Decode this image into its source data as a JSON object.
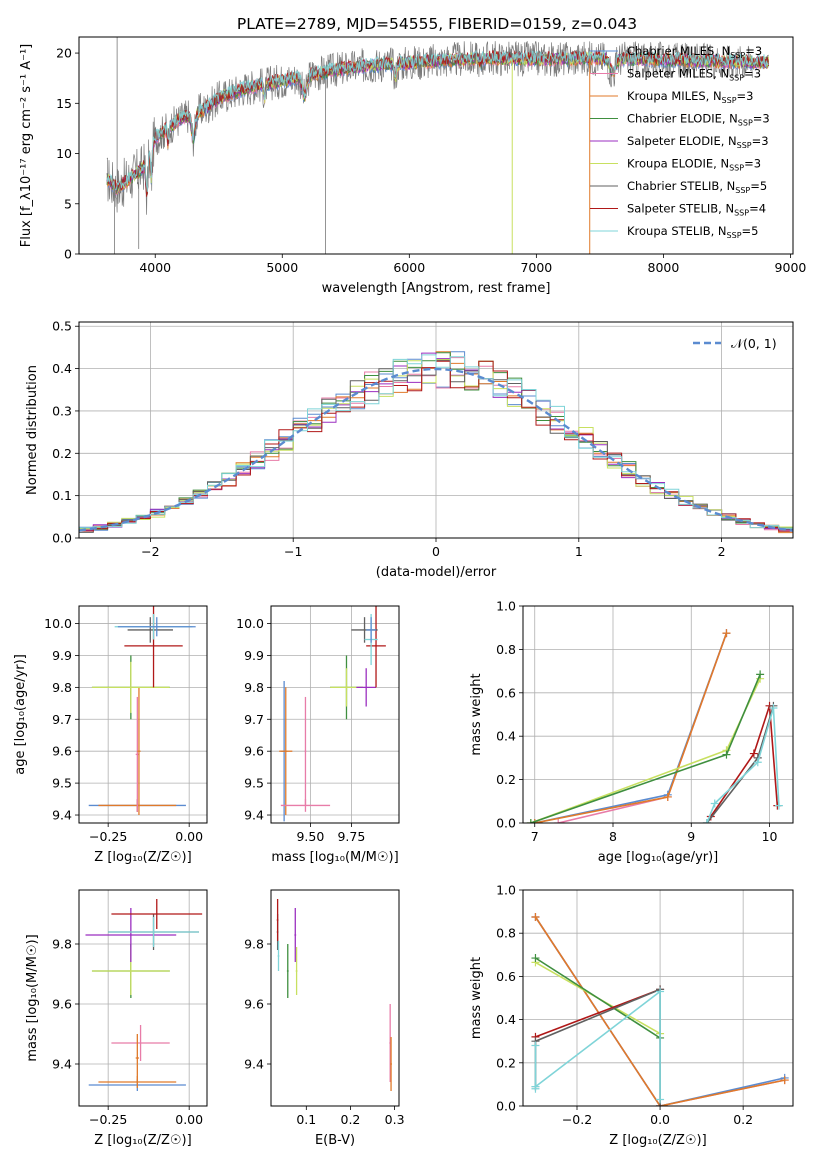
{
  "figure_title": "PLATE=2789, MJD=54555, FIBERID=0159, z=0.043",
  "colors": {
    "chabrier_miles": "#5b8bd0",
    "salpeter_miles": "#e87ca8",
    "kroupa_miles": "#e07a2a",
    "chabrier_elodie": "#3f8f3f",
    "salpeter_elodie": "#9b2fc0",
    "kroupa_elodie": "#c8e060",
    "chabrier_stelib": "#606060",
    "salpeter_stelib": "#b01818",
    "kroupa_stelib": "#7fd4d8",
    "gauss": "#5b8bd0",
    "grid": "#b0b0b0"
  },
  "chart_data": [
    {
      "id": "spectrum",
      "type": "line",
      "title": "PLATE=2789, MJD=54555, FIBERID=0159, z=0.043",
      "xlabel": "wavelength [Angstrom, rest frame]",
      "ylabel": "Flux [f_λ10⁻¹⁷ erg cm⁻² s⁻¹ A⁻¹]",
      "xlim": [
        3400,
        9020
      ],
      "ylim": [
        0,
        21.6
      ],
      "xticks": [
        4000,
        5000,
        6000,
        7000,
        8000,
        9000
      ],
      "yticks": [
        0,
        5,
        10,
        15,
        20
      ],
      "grid": false,
      "legend": "top-right",
      "legend_entries": [
        {
          "key": "chabrier_miles",
          "label": "Chabrier MILES, N",
          "sub": "SSP",
          "tail": "=3"
        },
        {
          "key": "salpeter_miles",
          "label": "Salpeter MILES, N",
          "sub": "SSP",
          "tail": "=3"
        },
        {
          "key": "kroupa_miles",
          "label": "Kroupa MILES, N",
          "sub": "SSP",
          "tail": "=3"
        },
        {
          "key": "chabrier_elodie",
          "label": "Chabrier ELODIE, N",
          "sub": "SSP",
          "tail": "=3"
        },
        {
          "key": "salpeter_elodie",
          "label": "Salpeter ELODIE, N",
          "sub": "SSP",
          "tail": "=3"
        },
        {
          "key": "kroupa_elodie",
          "label": "Kroupa ELODIE, N",
          "sub": "SSP",
          "tail": "=3"
        },
        {
          "key": "chabrier_stelib",
          "label": "Chabrier STELIB, N",
          "sub": "SSP",
          "tail": "=5"
        },
        {
          "key": "salpeter_stelib",
          "label": "Salpeter STELIB, N",
          "sub": "SSP",
          "tail": "=4"
        },
        {
          "key": "kroupa_stelib",
          "label": "Kroupa STELIB, N",
          "sub": "SSP",
          "tail": "=5"
        }
      ],
      "continuum": {
        "x": [
          3620,
          3700,
          3800,
          3900,
          4000,
          4100,
          4200,
          4300,
          4400,
          4500,
          4700,
          4900,
          5100,
          5300,
          5500,
          5700,
          6000,
          6300,
          6600,
          6900,
          7200,
          7500,
          7800,
          8100,
          8400,
          8700
        ],
        "y": [
          7.5,
          6.5,
          7.5,
          8.5,
          11.5,
          12.5,
          13.5,
          14.0,
          14.5,
          15.5,
          16.5,
          17.0,
          17.5,
          18.0,
          18.5,
          18.8,
          19.0,
          19.3,
          19.5,
          19.4,
          19.4,
          19.5,
          19.4,
          19.3,
          19.2,
          19.1
        ]
      },
      "data_range": [
        3620,
        8700
      ],
      "model_range": [
        3620,
        8830
      ]
    },
    {
      "id": "residuals",
      "type": "histogram",
      "xlabel": "(data-model)/error",
      "ylabel": "Normed distribution",
      "xlim": [
        -2.5,
        2.5
      ],
      "ylim": [
        0,
        0.51
      ],
      "xticks": [
        -2,
        -1,
        0,
        1,
        2
      ],
      "yticks": [
        0,
        0.1,
        0.2,
        0.3,
        0.4,
        0.5
      ],
      "grid": true,
      "legend": "top-right",
      "legend_label": "𝒩(0, 1)",
      "gauss": {
        "mean": 0,
        "sigma": 1
      }
    },
    {
      "id": "age-vs-Z",
      "type": "errorbar",
      "xlabel": "Z [log₁₀(Z/Z☉)]",
      "ylabel": "age  [log₁₀(age/yr)]",
      "xlim": [
        -0.34,
        0.055
      ],
      "ylim": [
        9.375,
        10.055
      ],
      "xticks": [
        -0.25,
        0,
        0.25
      ],
      "xticklabels": [
        "−0.25",
        "0.00",
        ""
      ],
      "yticks": [
        9.4,
        9.5,
        9.6,
        9.7,
        9.8,
        9.9,
        10.0
      ],
      "grid": true,
      "points": [
        {
          "key": "chabrier_miles",
          "x": -0.16,
          "xerr": 0.15,
          "y": 9.43,
          "yerr": 0.02
        },
        {
          "key": "kroupa_miles",
          "x": -0.16,
          "xerr": 0.12,
          "y": 9.43,
          "yerr": 0.02
        },
        {
          "key": "salpeter_miles",
          "x": -0.16,
          "xerr": 0.005,
          "y": 9.59,
          "yerr": 0.18
        },
        {
          "key": "kroupa_miles",
          "x": -0.155,
          "xerr": 0.005,
          "y": 9.6,
          "yerr": 0.2
        },
        {
          "key": "chabrier_elodie",
          "x": -0.18,
          "xerr": 0.12,
          "y": 9.8,
          "yerr": 0.1
        },
        {
          "key": "kroupa_elodie",
          "x": -0.18,
          "xerr": 0.12,
          "y": 9.8,
          "yerr": 0.08
        },
        {
          "key": "salpeter_stelib",
          "x": -0.11,
          "xerr": 0.09,
          "y": 9.93,
          "yerr": 0.13
        },
        {
          "key": "chabrier_stelib",
          "x": -0.12,
          "xerr": 0.07,
          "y": 9.98,
          "yerr": 0.04
        },
        {
          "key": "kroupa_stelib",
          "x": -0.11,
          "xerr": 0.12,
          "y": 9.99,
          "yerr": 0.04
        },
        {
          "key": "chabrier_miles",
          "x": -0.1,
          "xerr": 0.12,
          "y": 9.99,
          "yerr": 0.03
        }
      ]
    },
    {
      "id": "age-vs-mass",
      "type": "errorbar",
      "xlabel": "mass [log₁₀(M/M☉)]",
      "xlim": [
        9.26,
        10.04
      ],
      "ylim": [
        9.375,
        10.055
      ],
      "xticks": [
        9.5,
        9.75
      ],
      "xticklabels": [
        "9.50",
        "9.75"
      ],
      "yticks": [
        9.4,
        9.5,
        9.6,
        9.7,
        9.8,
        9.9,
        10.0
      ],
      "grid": true,
      "points": [
        {
          "key": "chabrier_miles",
          "x": 9.34,
          "xerr": 0.02,
          "y": 9.6,
          "yerr": 0.22
        },
        {
          "key": "kroupa_miles",
          "x": 9.35,
          "xerr": 0.04,
          "y": 9.6,
          "yerr": 0.2
        },
        {
          "key": "salpeter_miles",
          "x": 9.47,
          "xerr": 0.15,
          "y": 9.43,
          "yerr": 0.02
        },
        {
          "key": "salpeter_miles",
          "x": 9.47,
          "xerr": 0.005,
          "y": 9.6,
          "yerr": 0.17
        },
        {
          "key": "chabrier_elodie",
          "x": 9.72,
          "xerr": 0.1,
          "y": 9.8,
          "yerr": 0.1
        },
        {
          "key": "kroupa_elodie",
          "x": 9.72,
          "xerr": 0.1,
          "y": 9.8,
          "yerr": 0.06
        },
        {
          "key": "salpeter_elodie",
          "x": 9.84,
          "xerr": 0.06,
          "y": 9.8,
          "yerr": 0.06
        },
        {
          "key": "salpeter_stelib",
          "x": 9.9,
          "xerr": 0.06,
          "y": 9.93,
          "yerr": 0.13
        },
        {
          "key": "chabrier_stelib",
          "x": 9.83,
          "xerr": 0.08,
          "y": 9.98,
          "yerr": 0.04
        },
        {
          "key": "kroupa_stelib",
          "x": 9.87,
          "xerr": 0.04,
          "y": 9.95,
          "yerr": 0.08
        },
        {
          "key": "chabrier_miles",
          "x": 9.87,
          "xerr": 0.03,
          "y": 9.98,
          "yerr": 0.04
        }
      ]
    },
    {
      "id": "weight-vs-age",
      "type": "line",
      "xlabel": "age  [log₁₀(age/yr)]",
      "ylabel": "mass weight",
      "xlim": [
        6.85,
        10.3
      ],
      "ylim": [
        0,
        1.0
      ],
      "xticks": [
        7,
        8,
        9,
        10
      ],
      "yticks": [
        0,
        0.2,
        0.4,
        0.6,
        0.8,
        1.0
      ],
      "grid": true,
      "series": [
        {
          "key": "salpeter_miles",
          "x": [
            7.3,
            8.7,
            9.45
          ],
          "y": [
            0.0,
            0.12,
            0.875
          ]
        },
        {
          "key": "chabrier_miles",
          "x": [
            7.0,
            8.7,
            9.45
          ],
          "y": [
            0.0,
            0.13,
            0.875
          ]
        },
        {
          "key": "kroupa_miles",
          "x": [
            7.0,
            8.7,
            9.45
          ],
          "y": [
            0.0,
            0.12,
            0.875
          ]
        },
        {
          "key": "kroupa_elodie",
          "x": [
            6.95,
            9.45,
            9.88
          ],
          "y": [
            0.0,
            0.335,
            0.665
          ]
        },
        {
          "key": "chabrier_elodie",
          "x": [
            6.95,
            9.45,
            9.88
          ],
          "y": [
            0.0,
            0.315,
            0.685
          ]
        },
        {
          "key": "salpeter_stelib",
          "x": [
            9.25,
            9.8,
            10.0,
            10.1
          ],
          "y": [
            0.03,
            0.32,
            0.54,
            0.08
          ]
        },
        {
          "key": "chabrier_stelib",
          "x": [
            9.2,
            9.85,
            10.05
          ],
          "y": [
            0.0,
            0.3,
            0.54
          ]
        },
        {
          "key": "kroupa_stelib",
          "x": [
            9.2,
            9.3,
            9.85,
            10.05,
            10.12
          ],
          "y": [
            0.0,
            0.09,
            0.28,
            0.53,
            0.08
          ]
        }
      ]
    },
    {
      "id": "mass-vs-Z",
      "type": "errorbar",
      "xlabel": "Z [log₁₀(Z/Z☉)]",
      "ylabel": "mass [log₁₀(M/M☉)]",
      "xlim": [
        -0.34,
        0.055
      ],
      "ylim": [
        9.26,
        9.98
      ],
      "xticks": [
        -0.25,
        0,
        0.25
      ],
      "xticklabels": [
        "−0.25",
        "0.00",
        ""
      ],
      "yticks": [
        9.4,
        9.6,
        9.8
      ],
      "grid": true,
      "points": [
        {
          "key": "chabrier_miles",
          "x": -0.16,
          "xerr": 0.15,
          "y": 9.33,
          "yerr": 0.02
        },
        {
          "key": "kroupa_miles",
          "x": -0.16,
          "xerr": 0.12,
          "y": 9.34,
          "yerr": 0.02
        },
        {
          "key": "salpeter_miles",
          "x": -0.15,
          "xerr": 0.09,
          "y": 9.47,
          "yerr": 0.06
        },
        {
          "key": "kroupa_miles",
          "x": -0.16,
          "xerr": 0.005,
          "y": 9.42,
          "yerr": 0.08
        },
        {
          "key": "chabrier_elodie",
          "x": -0.18,
          "xerr": 0.12,
          "y": 9.71,
          "yerr": 0.09
        },
        {
          "key": "kroupa_elodie",
          "x": -0.18,
          "xerr": 0.12,
          "y": 9.71,
          "yerr": 0.08
        },
        {
          "key": "salpeter_elodie",
          "x": -0.18,
          "xerr": 0.14,
          "y": 9.83,
          "yerr": 0.09
        },
        {
          "key": "chabrier_stelib",
          "x": -0.11,
          "xerr": 0.14,
          "y": 9.84,
          "yerr": 0.06
        },
        {
          "key": "kroupa_stelib",
          "x": -0.11,
          "xerr": 0.14,
          "y": 9.84,
          "yerr": 0.05
        },
        {
          "key": "salpeter_stelib",
          "x": -0.1,
          "xerr": 0.14,
          "y": 9.9,
          "yerr": 0.05
        }
      ]
    },
    {
      "id": "mass-vs-EBV",
      "type": "errorbar",
      "xlabel": "E(B-V)",
      "xlim": [
        0.02,
        0.31
      ],
      "ylim": [
        9.26,
        9.98
      ],
      "xticks": [
        0.1,
        0.2,
        0.3
      ],
      "xticklabels": [
        "0.1",
        "0.2",
        "0.3"
      ],
      "yticks": [
        9.4,
        9.6,
        9.8
      ],
      "grid": false,
      "points": [
        {
          "key": "chabrier_stelib",
          "x": 0.035,
          "xerr": 0.002,
          "y": 9.84,
          "yerr": 0.06
        },
        {
          "key": "salpeter_stelib",
          "x": 0.035,
          "xerr": 0.002,
          "y": 9.88,
          "yerr": 0.07
        },
        {
          "key": "kroupa_stelib",
          "x": 0.037,
          "xerr": 0.002,
          "y": 9.76,
          "yerr": 0.05
        },
        {
          "key": "chabrier_elodie",
          "x": 0.058,
          "xerr": 0.002,
          "y": 9.71,
          "yerr": 0.09
        },
        {
          "key": "salpeter_elodie",
          "x": 0.075,
          "xerr": 0.002,
          "y": 9.83,
          "yerr": 0.09
        },
        {
          "key": "kroupa_elodie",
          "x": 0.078,
          "xerr": 0.002,
          "y": 9.71,
          "yerr": 0.08
        },
        {
          "key": "salpeter_miles",
          "x": 0.29,
          "xerr": 0.002,
          "y": 9.47,
          "yerr": 0.13
        },
        {
          "key": "kroupa_miles",
          "x": 0.292,
          "xerr": 0.002,
          "y": 9.4,
          "yerr": 0.09
        }
      ]
    },
    {
      "id": "weight-vs-Z",
      "type": "line",
      "xlabel": "Z [log₁₀(Z/Z☉)]",
      "ylabel": "mass weight",
      "xlim": [
        -0.33,
        0.32
      ],
      "ylim": [
        0,
        1.0
      ],
      "xticks": [
        -0.2,
        0,
        0.2
      ],
      "xticklabels": [
        "−0.2",
        "0.0",
        "0.2"
      ],
      "yticks": [
        0,
        0.2,
        0.4,
        0.6,
        0.8,
        1.0
      ],
      "grid": true,
      "series": [
        {
          "key": "salpeter_miles",
          "x": [
            -0.3,
            0.0,
            0.3
          ],
          "y": [
            0.875,
            0.0,
            0.12
          ]
        },
        {
          "key": "chabrier_miles",
          "x": [
            -0.3,
            0.0,
            0.3
          ],
          "y": [
            0.875,
            0.0,
            0.13
          ]
        },
        {
          "key": "kroupa_miles",
          "x": [
            -0.3,
            0.0,
            0.3
          ],
          "y": [
            0.875,
            0.0,
            0.12
          ]
        },
        {
          "key": "kroupa_elodie",
          "x": [
            -0.3,
            0.0
          ],
          "y": [
            0.665,
            0.335
          ]
        },
        {
          "key": "chabrier_elodie",
          "x": [
            -0.3,
            0.0
          ],
          "y": [
            0.685,
            0.315
          ]
        },
        {
          "key": "salpeter_stelib",
          "x": [
            -0.3,
            0.0
          ],
          "y": [
            0.32,
            0.54
          ]
        },
        {
          "key": "chabrier_stelib",
          "x": [
            -0.3,
            -0.3,
            0.0,
            0.0
          ],
          "y": [
            0.09,
            0.3,
            0.54,
            0.0
          ]
        },
        {
          "key": "kroupa_stelib",
          "x": [
            -0.3,
            -0.3,
            -0.3,
            0.0,
            0.0
          ],
          "y": [
            0.28,
            0.08,
            0.09,
            0.53,
            0.03
          ]
        }
      ]
    }
  ]
}
